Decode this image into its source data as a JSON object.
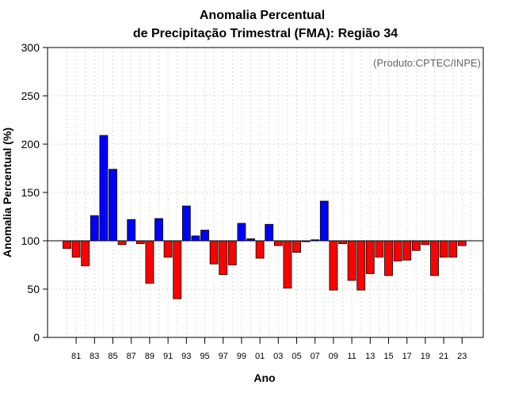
{
  "chart_data": {
    "type": "bar",
    "title": "Anomalia Percentual",
    "subtitle": "de Precipitação Trimestral (FMA): Região 34",
    "xlabel": "Ano",
    "ylabel": "Anomalia Percentual (%)",
    "credit": "(Produto:CPTEC/INPE)",
    "ylim": [
      0,
      300
    ],
    "yticks": [
      0,
      50,
      100,
      150,
      200,
      250,
      300
    ],
    "baseline": 100,
    "colors": {
      "above": "#0000ff",
      "below": "#ff0000",
      "edge": "#000000"
    },
    "categories": [
      "80",
      "81",
      "82",
      "83",
      "84",
      "85",
      "86",
      "87",
      "88",
      "89",
      "90",
      "91",
      "92",
      "93",
      "94",
      "95",
      "96",
      "97",
      "98",
      "99",
      "00",
      "01",
      "02",
      "03",
      "04",
      "05",
      "06",
      "07",
      "08",
      "09",
      "10",
      "11",
      "12",
      "13",
      "14",
      "15",
      "16",
      "17",
      "18",
      "19",
      "20",
      "21",
      "22",
      "23",
      "24"
    ],
    "xtick_labels": [
      "81",
      "83",
      "85",
      "87",
      "89",
      "91",
      "93",
      "95",
      "97",
      "99",
      "01",
      "03",
      "05",
      "07",
      "09",
      "11",
      "13",
      "15",
      "17",
      "19",
      "21",
      "23"
    ],
    "values": [
      92,
      83,
      74,
      126,
      209,
      174,
      96,
      122,
      97,
      56,
      123,
      83,
      40,
      136,
      105,
      111,
      76,
      65,
      75,
      118,
      102,
      82,
      117,
      95,
      51,
      88,
      99,
      101,
      141,
      49,
      97,
      59,
      49,
      66,
      83,
      64,
      79,
      80,
      90,
      96,
      64,
      83,
      83,
      95,
      100
    ]
  }
}
